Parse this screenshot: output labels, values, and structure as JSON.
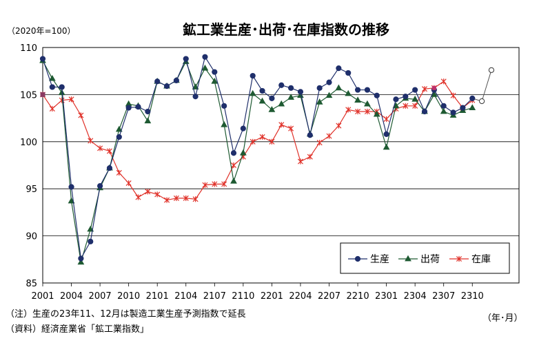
{
  "chart_data": {
    "type": "line",
    "title": "鉱工業生産･出荷･在庫指数の推移",
    "unit_label": "（2020年=100）",
    "x_unit_label": "（年･月）",
    "notes": [
      "（注）生産の23年11、12月は製造工業生産予測指数で延長",
      "（資料）経済産業省「鉱工業指数」"
    ],
    "ylim": [
      85,
      110
    ],
    "yticks": [
      85,
      90,
      95,
      100,
      105,
      110
    ],
    "grid": "horizontal",
    "legend_position": "bottom-right",
    "x_tick_labels": [
      "2001",
      "2004",
      "2007",
      "2010",
      "2101",
      "2104",
      "2107",
      "2110",
      "2201",
      "2204",
      "2207",
      "2210",
      "2301",
      "2304",
      "2307",
      "2310"
    ],
    "series": [
      {
        "name": "生産",
        "color": "#1f2f6b",
        "marker": "circle",
        "values": [
          108.8,
          105.8,
          105.8,
          95.2,
          87.6,
          89.4,
          95.3,
          97.2,
          100.5,
          103.6,
          103.7,
          103.2,
          106.4,
          105.9,
          106.5,
          108.8,
          104.8,
          109.0,
          107.4,
          103.8,
          98.8,
          101.4,
          107.0,
          105.4,
          104.6,
          106.0,
          105.7,
          105.3,
          100.7,
          105.7,
          106.3,
          107.8,
          107.3,
          105.5,
          105.5,
          104.9,
          100.8,
          104.5,
          104.8,
          105.5,
          103.2,
          105.5,
          103.8,
          103.1,
          103.6,
          104.6
        ],
        "forecast": [
          104.3,
          107.6
        ]
      },
      {
        "name": "出荷",
        "color": "#1e5a32",
        "marker": "triangle",
        "values": [
          108.6,
          106.7,
          105.2,
          93.7,
          87.2,
          90.7,
          95.1,
          97.2,
          101.3,
          104.0,
          103.8,
          102.2,
          106.4,
          105.9,
          106.5,
          108.5,
          105.8,
          107.8,
          106.4,
          101.8,
          95.8,
          98.8,
          105.1,
          104.3,
          103.4,
          104.0,
          104.7,
          104.9,
          100.8,
          104.2,
          104.9,
          105.7,
          105.1,
          104.4,
          104.0,
          102.9,
          99.4,
          103.8,
          104.6,
          104.5,
          103.2,
          105.0,
          103.2,
          102.8,
          103.3,
          103.6
        ]
      },
      {
        "name": "在庫",
        "color": "#e0322a",
        "marker": "star",
        "values": [
          105.0,
          103.5,
          104.4,
          104.5,
          102.8,
          100.1,
          99.3,
          99.0,
          96.7,
          95.6,
          94.1,
          94.7,
          94.4,
          93.8,
          94.0,
          94.0,
          93.9,
          95.4,
          95.5,
          95.5,
          97.5,
          98.4,
          100.0,
          100.5,
          100.0,
          101.8,
          101.4,
          97.9,
          98.4,
          99.9,
          100.6,
          101.7,
          103.4,
          103.2,
          103.2,
          103.2,
          102.4,
          103.5,
          103.8,
          103.8,
          105.6,
          105.7,
          106.4,
          104.9,
          103.6,
          104.4
        ]
      }
    ]
  }
}
